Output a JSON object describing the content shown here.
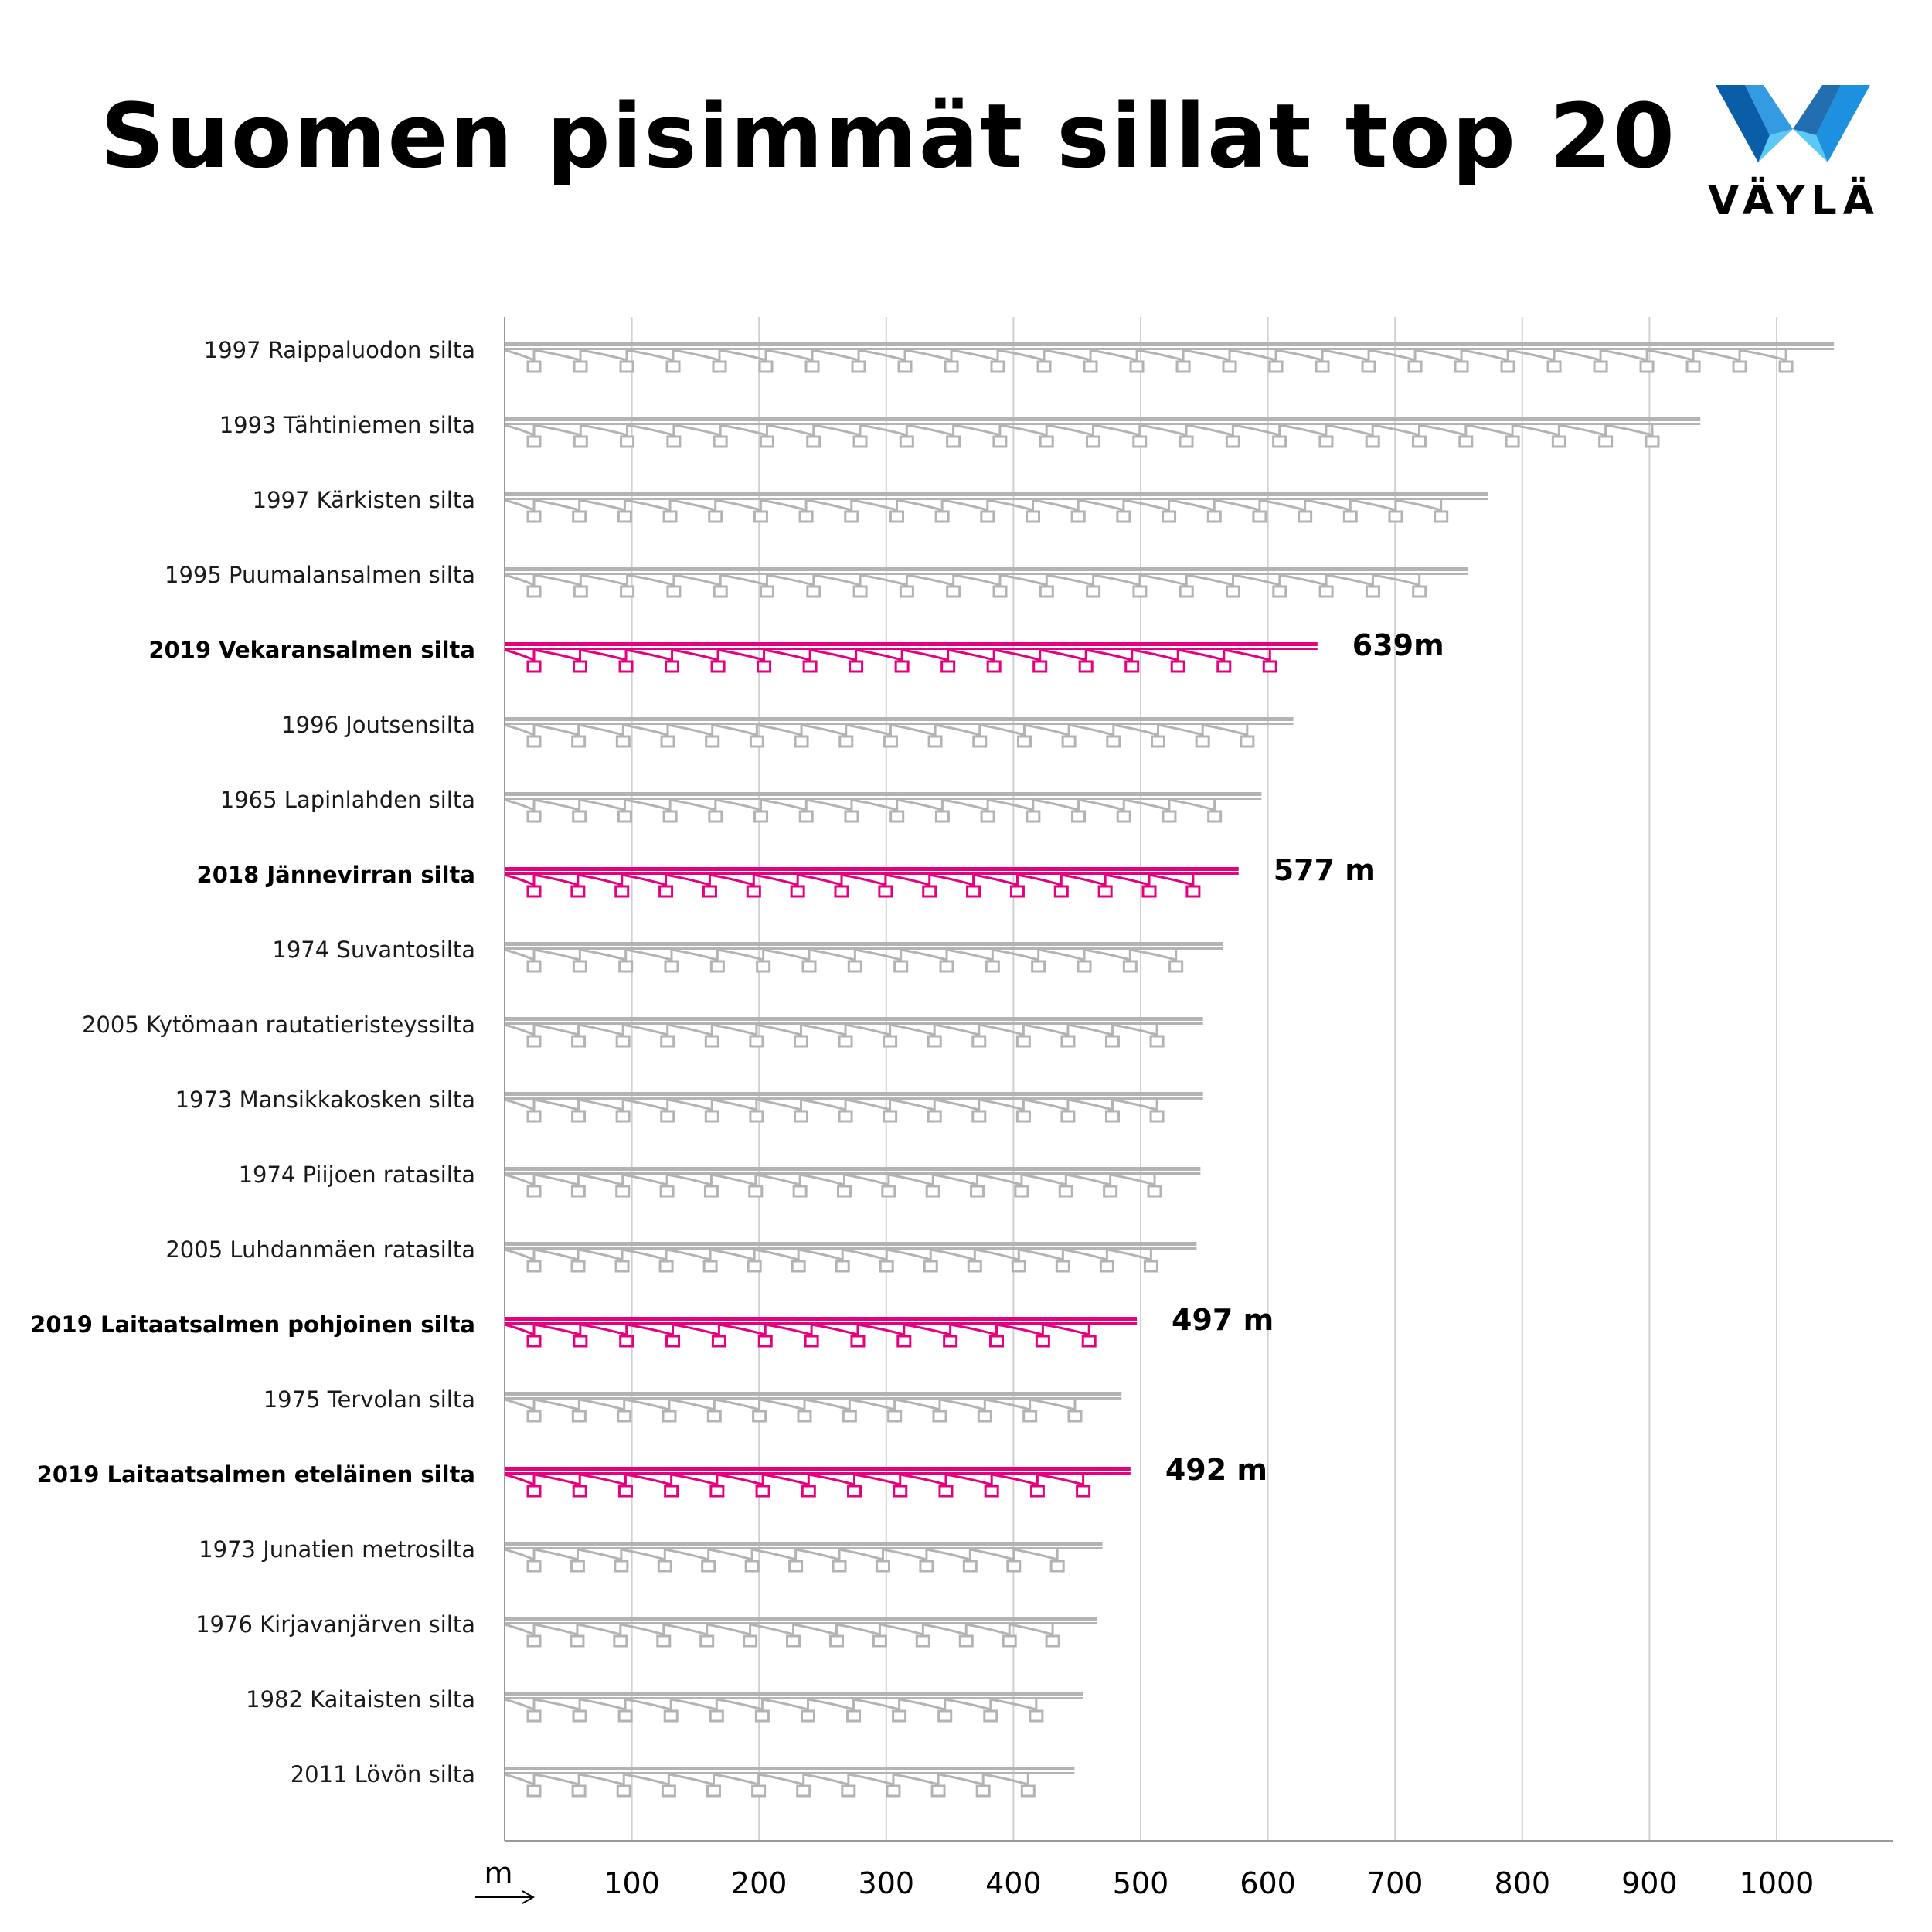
{
  "title": "Suomen pisimmät sillat top 20",
  "logo": {
    "text": "VÄYLÄ",
    "colors": [
      "#0a5ea8",
      "#1e90e0",
      "#5cc8f5"
    ]
  },
  "colors": {
    "highlight": "#e6007e",
    "default": "#b3b3b3",
    "grid": "#d0d0d0",
    "axis": "#999999"
  },
  "chart_data": {
    "type": "bar",
    "orientation": "horizontal",
    "title": "Suomen pisimmät sillat top 20",
    "xlabel": "m",
    "xlim": [
      0,
      1080
    ],
    "xticks": [
      100,
      200,
      300,
      400,
      500,
      600,
      700,
      800,
      900,
      1000
    ],
    "bars": [
      {
        "label": "1997 Raippaluodon silta",
        "value": 1045,
        "highlight": false
      },
      {
        "label": "1993 Tähtiniemen silta",
        "value": 940,
        "highlight": false
      },
      {
        "label": "1997 Kärkisten silta",
        "value": 773,
        "highlight": false
      },
      {
        "label": "1995 Puumalansalmen silta",
        "value": 757,
        "highlight": false
      },
      {
        "label": "2019 Vekaransalmen silta",
        "value": 639,
        "highlight": true,
        "value_label": "639m"
      },
      {
        "label": "1996 Joutsensilta",
        "value": 620,
        "highlight": false
      },
      {
        "label": "1965 Lapinlahden silta",
        "value": 595,
        "highlight": false
      },
      {
        "label": "2018 Jännevirran silta",
        "value": 577,
        "highlight": true,
        "value_label": "577 m"
      },
      {
        "label": "1974 Suvantosilta",
        "value": 565,
        "highlight": false
      },
      {
        "label": "2005 Kytömaan rautatieristeyssilta",
        "value": 549,
        "highlight": false
      },
      {
        "label": "1973 Mansikkakosken silta",
        "value": 549,
        "highlight": false
      },
      {
        "label": "1974 Piijoen ratasilta",
        "value": 547,
        "highlight": false
      },
      {
        "label": "2005 Luhdanmäen ratasilta",
        "value": 544,
        "highlight": false
      },
      {
        "label": "2019 Laitaatsalmen pohjoinen silta",
        "value": 497,
        "highlight": true,
        "value_label": "497 m"
      },
      {
        "label": "1975 Tervolan silta",
        "value": 485,
        "highlight": false
      },
      {
        "label": "2019 Laitaatsalmen eteläinen silta",
        "value": 492,
        "highlight": true,
        "value_label": "492 m"
      },
      {
        "label": "1973 Junatien metrosilta",
        "value": 470,
        "highlight": false
      },
      {
        "label": "1976 Kirjavanjärven silta",
        "value": 466,
        "highlight": false
      },
      {
        "label": "1982 Kaitaisten silta",
        "value": 455,
        "highlight": false
      },
      {
        "label": "2011 Lövön silta",
        "value": 448,
        "highlight": false
      }
    ]
  }
}
